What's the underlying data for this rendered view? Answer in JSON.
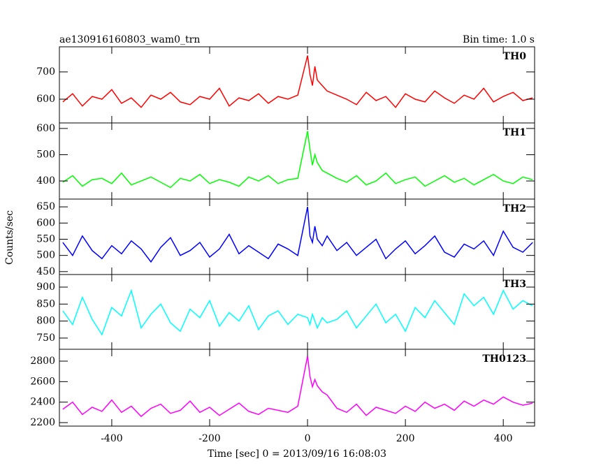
{
  "chart_data": {
    "type": "line",
    "title": "ae130916160803_wam0_trn",
    "subtitle": "Bin time: 1.0 s",
    "xlabel": "Time [sec] 0 = 2013/09/16 16:08:03",
    "ylabel": "Counts/sec",
    "xlim": [
      -507,
      464
    ],
    "xticks": [
      -400,
      -200,
      0,
      200,
      400
    ],
    "x": [
      -500,
      -480,
      -460,
      -440,
      -420,
      -400,
      -380,
      -360,
      -340,
      -320,
      -300,
      -280,
      -260,
      -240,
      -220,
      -200,
      -180,
      -160,
      -140,
      -120,
      -100,
      -80,
      -60,
      -40,
      -20,
      0,
      5,
      10,
      15,
      20,
      30,
      40,
      60,
      80,
      100,
      120,
      140,
      160,
      180,
      200,
      220,
      240,
      260,
      280,
      300,
      320,
      340,
      360,
      380,
      400,
      420,
      440,
      460
    ],
    "panels": [
      {
        "name": "TH0",
        "color": "#ff0000",
        "ylim": [
          513,
          792
        ],
        "yticks": [
          600,
          700
        ],
        "values": [
          590,
          620,
          575,
          610,
          600,
          635,
          585,
          605,
          570,
          615,
          600,
          625,
          590,
          580,
          610,
          600,
          640,
          575,
          605,
          595,
          620,
          585,
          610,
          600,
          615,
          760,
          690,
          650,
          720,
          670,
          650,
          630,
          615,
          600,
          580,
          625,
          595,
          610,
          570,
          620,
          600,
          590,
          630,
          605,
          585,
          615,
          600,
          640,
          590,
          610,
          625,
          595,
          605
        ]
      },
      {
        "name": "TH1",
        "color": "#00ff00",
        "ylim": [
          331,
          621
        ],
        "yticks": [
          400,
          500,
          600
        ],
        "values": [
          395,
          420,
          380,
          405,
          410,
          390,
          430,
          385,
          400,
          415,
          395,
          375,
          410,
          400,
          425,
          390,
          405,
          395,
          380,
          415,
          400,
          420,
          390,
          405,
          410,
          590,
          520,
          460,
          500,
          470,
          440,
          430,
          410,
          395,
          420,
          385,
          400,
          430,
          390,
          405,
          415,
          380,
          400,
          420,
          395,
          410,
          385,
          405,
          425,
          400,
          390,
          415,
          405
        ]
      },
      {
        "name": "TH2",
        "color": "#0000ff",
        "ylim": [
          441,
          674
        ],
        "yticks": [
          450,
          500,
          550,
          600,
          650
        ],
        "values": [
          540,
          500,
          560,
          515,
          490,
          530,
          505,
          545,
          520,
          480,
          525,
          555,
          500,
          515,
          540,
          495,
          520,
          565,
          505,
          530,
          510,
          490,
          535,
          520,
          500,
          650,
          560,
          540,
          590,
          550,
          530,
          560,
          515,
          540,
          500,
          525,
          550,
          490,
          520,
          545,
          505,
          530,
          560,
          510,
          495,
          535,
          520,
          545,
          500,
          575,
          525,
          510,
          540
        ]
      },
      {
        "name": "TH3",
        "color": "#00ffff",
        "ylim": [
          717,
          937
        ],
        "yticks": [
          750,
          800,
          850,
          900
        ],
        "values": [
          830,
          790,
          870,
          805,
          760,
          840,
          815,
          890,
          780,
          820,
          850,
          795,
          770,
          835,
          810,
          860,
          785,
          825,
          800,
          845,
          775,
          815,
          830,
          790,
          820,
          810,
          790,
          820,
          800,
          780,
          810,
          795,
          805,
          830,
          780,
          815,
          850,
          795,
          820,
          770,
          840,
          810,
          860,
          825,
          790,
          880,
          845,
          870,
          820,
          890,
          835,
          860,
          845
        ]
      },
      {
        "name": "TH0123",
        "color": "#ff00ff",
        "ylim": [
          2166,
          2916
        ],
        "yticks": [
          2200,
          2400,
          2600,
          2800
        ],
        "values": [
          2330,
          2400,
          2280,
          2350,
          2310,
          2420,
          2300,
          2360,
          2260,
          2340,
          2380,
          2290,
          2320,
          2410,
          2300,
          2350,
          2270,
          2330,
          2390,
          2310,
          2280,
          2340,
          2320,
          2300,
          2360,
          2850,
          2650,
          2550,
          2620,
          2560,
          2500,
          2470,
          2340,
          2300,
          2380,
          2270,
          2350,
          2320,
          2290,
          2360,
          2310,
          2400,
          2340,
          2380,
          2320,
          2410,
          2360,
          2420,
          2380,
          2450,
          2400,
          2370,
          2390
        ]
      }
    ]
  }
}
